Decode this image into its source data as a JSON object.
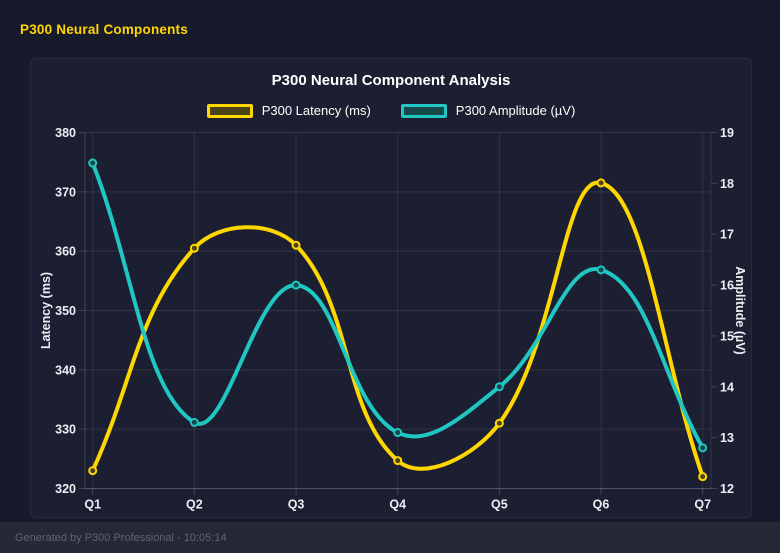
{
  "page": {
    "title": "P300 Neural Components",
    "footer": "Generated by P300 Professional - 10:05:14"
  },
  "colors": {
    "page_title": "#FFD600",
    "background": "#171a2a",
    "card_background": "#1c1f31",
    "footer_background": "#242837",
    "footer_text": "#5d6474",
    "grid": "rgba(255,255,255,0.09)",
    "axis_border": "rgba(255,255,255,0.16)",
    "tick_text": "#eceef4",
    "latency_line": "#FFD700",
    "latency_point_fill": "#4c4418",
    "amplitude_line": "#20C6C1",
    "amplitude_point_fill": "#15494c"
  },
  "chart_data": {
    "type": "line",
    "title": "P300 Neural Component Analysis",
    "categories": [
      "Q1",
      "Q2",
      "Q3",
      "Q4",
      "Q5",
      "Q6",
      "Q7"
    ],
    "series": [
      {
        "name": "P300 Latency (ms)",
        "axis": "left",
        "color": "#FFD700",
        "point_fill": "#4c4418",
        "values": [
          323,
          360.5,
          361,
          324.7,
          331,
          371.5,
          322
        ]
      },
      {
        "name": "P300 Amplitude (µV)",
        "axis": "right",
        "color": "#20C6C1",
        "point_fill": "#15494c",
        "values": [
          18.4,
          13.3,
          16.0,
          13.1,
          14.0,
          16.3,
          12.8
        ]
      }
    ],
    "left_axis": {
      "label": "Latency (ms)",
      "min": 320,
      "max": 380,
      "step": 10
    },
    "right_axis": {
      "label": "Amplitude (µV)",
      "min": 12,
      "max": 19,
      "step": 1
    },
    "grid": true,
    "legend_position": "top",
    "line_tension": 0.4
  }
}
